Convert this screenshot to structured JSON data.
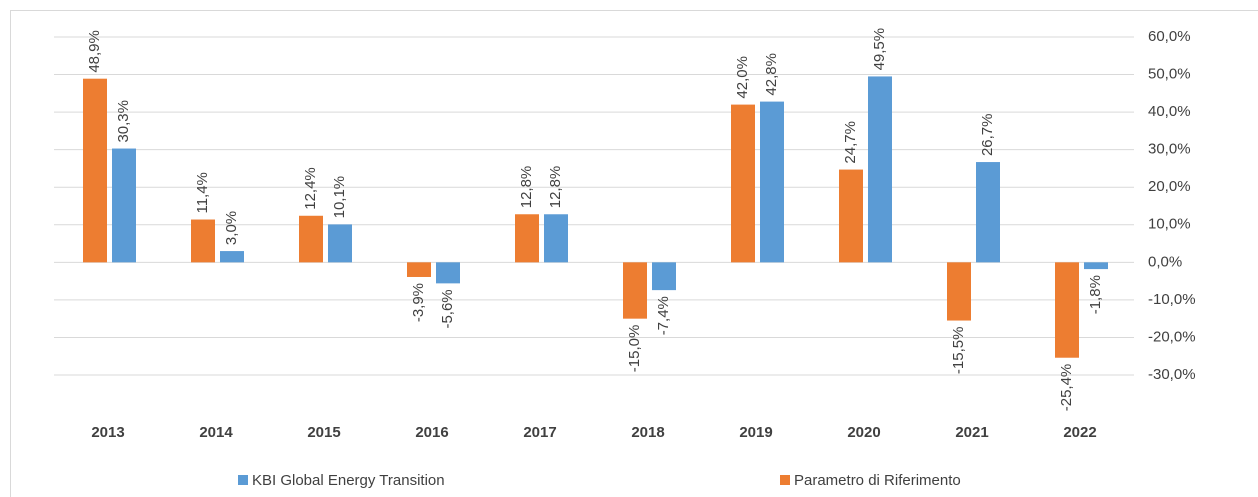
{
  "chart_data": {
    "type": "bar",
    "categories": [
      "2013",
      "2014",
      "2015",
      "2016",
      "2017",
      "2018",
      "2019",
      "2020",
      "2021",
      "2022"
    ],
    "series": [
      {
        "name": "Parametro di Riferimento",
        "color": "#ed7d31",
        "values": [
          48.9,
          11.4,
          12.4,
          -3.9,
          12.8,
          -15.0,
          42.0,
          24.7,
          -15.5,
          -25.4
        ],
        "value_labels": [
          "48,9%",
          "11,4%",
          "12,4%",
          "-3,9%",
          "12,8%",
          "-15,0%",
          "42,0%",
          "24,7%",
          "-15,5%",
          "-25,4%"
        ]
      },
      {
        "name": "KBI Global Energy Transition",
        "color": "#5b9bd5",
        "values": [
          30.3,
          3.0,
          10.1,
          -5.6,
          12.8,
          -7.4,
          42.8,
          49.5,
          26.7,
          -1.8
        ],
        "value_labels": [
          "30,3%",
          "3,0%",
          "10,1%",
          "-5,6%",
          "12,8%",
          "-7,4%",
          "42,8%",
          "49,5%",
          "26,7%",
          "-1,8%"
        ]
      }
    ],
    "ylim": [
      -30,
      60
    ],
    "yticks": [
      {
        "value": -30,
        "label": "-30,0%"
      },
      {
        "value": -20,
        "label": "-20,0%"
      },
      {
        "value": -10,
        "label": "-10,0%"
      },
      {
        "value": 0,
        "label": "0,0%"
      },
      {
        "value": 10,
        "label": "10,0%"
      },
      {
        "value": 20,
        "label": "20,0%"
      },
      {
        "value": 30,
        "label": "30,0%"
      },
      {
        "value": 40,
        "label": "40,0%"
      },
      {
        "value": 50,
        "label": "50,0%"
      },
      {
        "value": 60,
        "label": "60,0%"
      }
    ],
    "grid": true
  }
}
